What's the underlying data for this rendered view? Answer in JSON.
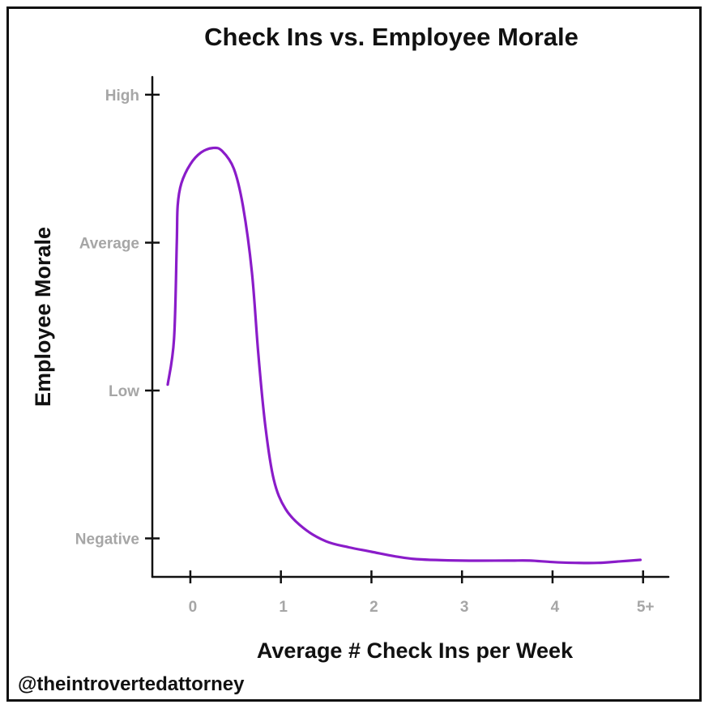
{
  "colors": {
    "line": "#8a1cc9",
    "axis": "#111111",
    "tick_label": "#a6a6a6",
    "text": "#111111"
  },
  "credit": "@theintrovertedattorney",
  "chart_data": {
    "type": "line",
    "title": "Check Ins vs. Employee Morale",
    "xlabel": "Average # Check Ins per Week",
    "ylabel": "Employee Morale",
    "x_ticks": [
      "0",
      "1",
      "2",
      "3",
      "4",
      "5+"
    ],
    "x_tick_values": [
      0,
      1,
      2,
      3,
      4,
      5
    ],
    "y_ticks": [
      "Negative",
      "Low",
      "Average",
      "High"
    ],
    "y_tick_values": [
      0,
      1,
      2,
      3
    ],
    "xlim": [
      -0.42,
      5.28
    ],
    "ylim": [
      -0.26,
      3.12
    ],
    "grid": false,
    "series": [
      {
        "values": [
          [
            -0.25,
            1.04
          ],
          [
            -0.18,
            1.35
          ],
          [
            -0.15,
            2.0
          ],
          [
            -0.14,
            2.25
          ],
          [
            -0.1,
            2.4
          ],
          [
            0.0,
            2.53
          ],
          [
            0.12,
            2.61
          ],
          [
            0.25,
            2.64
          ],
          [
            0.35,
            2.62
          ],
          [
            0.48,
            2.5
          ],
          [
            0.58,
            2.25
          ],
          [
            0.68,
            1.8
          ],
          [
            0.75,
            1.25
          ],
          [
            0.83,
            0.75
          ],
          [
            0.92,
            0.4
          ],
          [
            1.05,
            0.2
          ],
          [
            1.25,
            0.07
          ],
          [
            1.5,
            -0.02
          ],
          [
            1.75,
            -0.06
          ],
          [
            2.0,
            -0.09
          ],
          [
            2.25,
            -0.12
          ],
          [
            2.5,
            -0.14
          ],
          [
            3.0,
            -0.15
          ],
          [
            3.5,
            -0.15
          ],
          [
            3.75,
            -0.15
          ],
          [
            4.0,
            -0.16
          ],
          [
            4.25,
            -0.165
          ],
          [
            4.5,
            -0.165
          ],
          [
            4.75,
            -0.155
          ],
          [
            4.97,
            -0.145
          ]
        ]
      }
    ]
  }
}
